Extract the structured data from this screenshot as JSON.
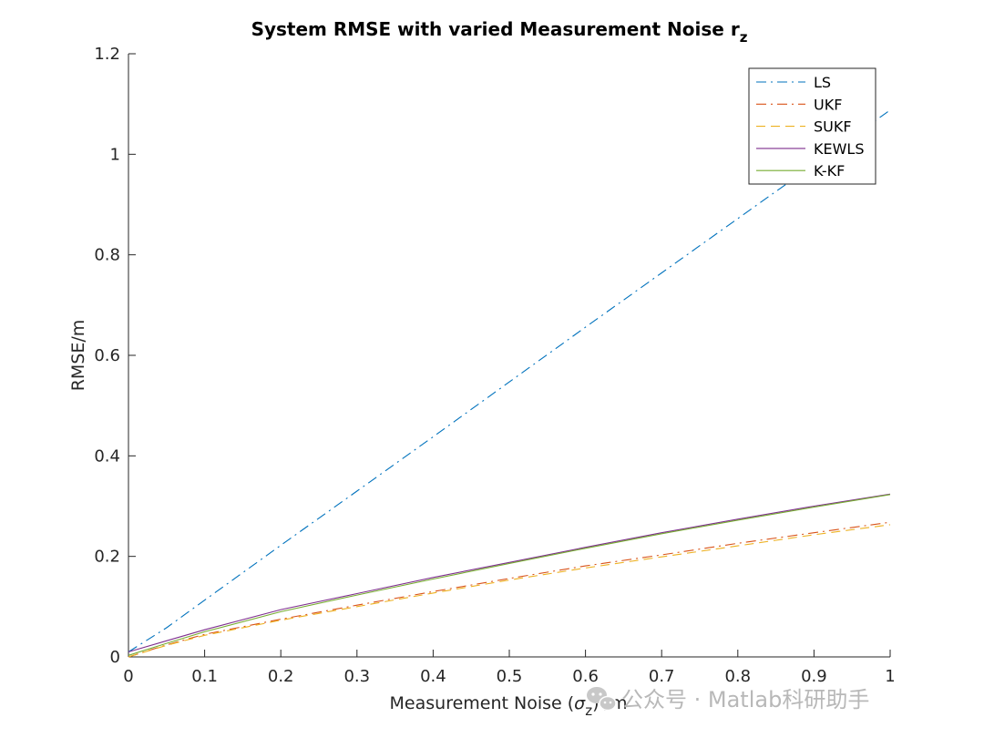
{
  "chart_data": {
    "type": "line",
    "title": "System RMSE with varied Measurement Noise r",
    "title_subscript": "z",
    "xlabel_prefix": "Measurement Noise (",
    "xlabel_symbol": "σ",
    "xlabel_subscript": "z",
    "xlabel_suffix": ") /m",
    "ylabel": "RMSE/m",
    "xlim": [
      0,
      1
    ],
    "ylim": [
      0,
      1.2
    ],
    "xticks": [
      0,
      0.1,
      0.2,
      0.3,
      0.4,
      0.5,
      0.6,
      0.7,
      0.8,
      0.9,
      1
    ],
    "xtick_labels": [
      "0",
      "0.1",
      "0.2",
      "0.3",
      "0.4",
      "0.5",
      "0.6",
      "0.7",
      "0.8",
      "0.9",
      "1"
    ],
    "yticks": [
      0,
      0.2,
      0.4,
      0.6,
      0.8,
      1,
      1.2
    ],
    "ytick_labels": [
      "0",
      "0.2",
      "0.4",
      "0.6",
      "0.8",
      "1",
      "1.2"
    ],
    "grid": false,
    "legend_position": "top-right",
    "x": [
      0,
      0.05,
      0.1,
      0.2,
      0.3,
      0.4,
      0.5,
      0.6,
      0.7,
      0.8,
      0.9,
      1
    ],
    "series": [
      {
        "name": "LS",
        "color": "#0072BD",
        "dash": "dashdot",
        "values": [
          0.01,
          0.058,
          0.113,
          0.222,
          0.33,
          0.438,
          0.547,
          0.656,
          0.764,
          0.872,
          0.98,
          1.088
        ]
      },
      {
        "name": "UKF",
        "color": "#D95319",
        "dash": "dashdot",
        "values": [
          0,
          0.024,
          0.045,
          0.075,
          0.103,
          0.13,
          0.156,
          0.181,
          0.203,
          0.226,
          0.247,
          0.268
        ]
      },
      {
        "name": "SUKF",
        "color": "#EDB120",
        "dash": "dashed",
        "values": [
          0,
          0.023,
          0.043,
          0.073,
          0.1,
          0.127,
          0.153,
          0.177,
          0.199,
          0.221,
          0.243,
          0.263
        ]
      },
      {
        "name": "KEWLS",
        "color": "#7E2F8E",
        "dash": "solid",
        "values": [
          0.01,
          0.032,
          0.054,
          0.094,
          0.126,
          0.158,
          0.188,
          0.218,
          0.247,
          0.274,
          0.3,
          0.324
        ]
      },
      {
        "name": "K-KF",
        "color": "#77AC30",
        "dash": "solid",
        "values": [
          0.003,
          0.027,
          0.05,
          0.09,
          0.123,
          0.155,
          0.186,
          0.216,
          0.245,
          0.272,
          0.298,
          0.323
        ]
      }
    ]
  },
  "watermark": {
    "text": "公众号 · Matlab科研助手",
    "icon": "wechat-icon"
  }
}
